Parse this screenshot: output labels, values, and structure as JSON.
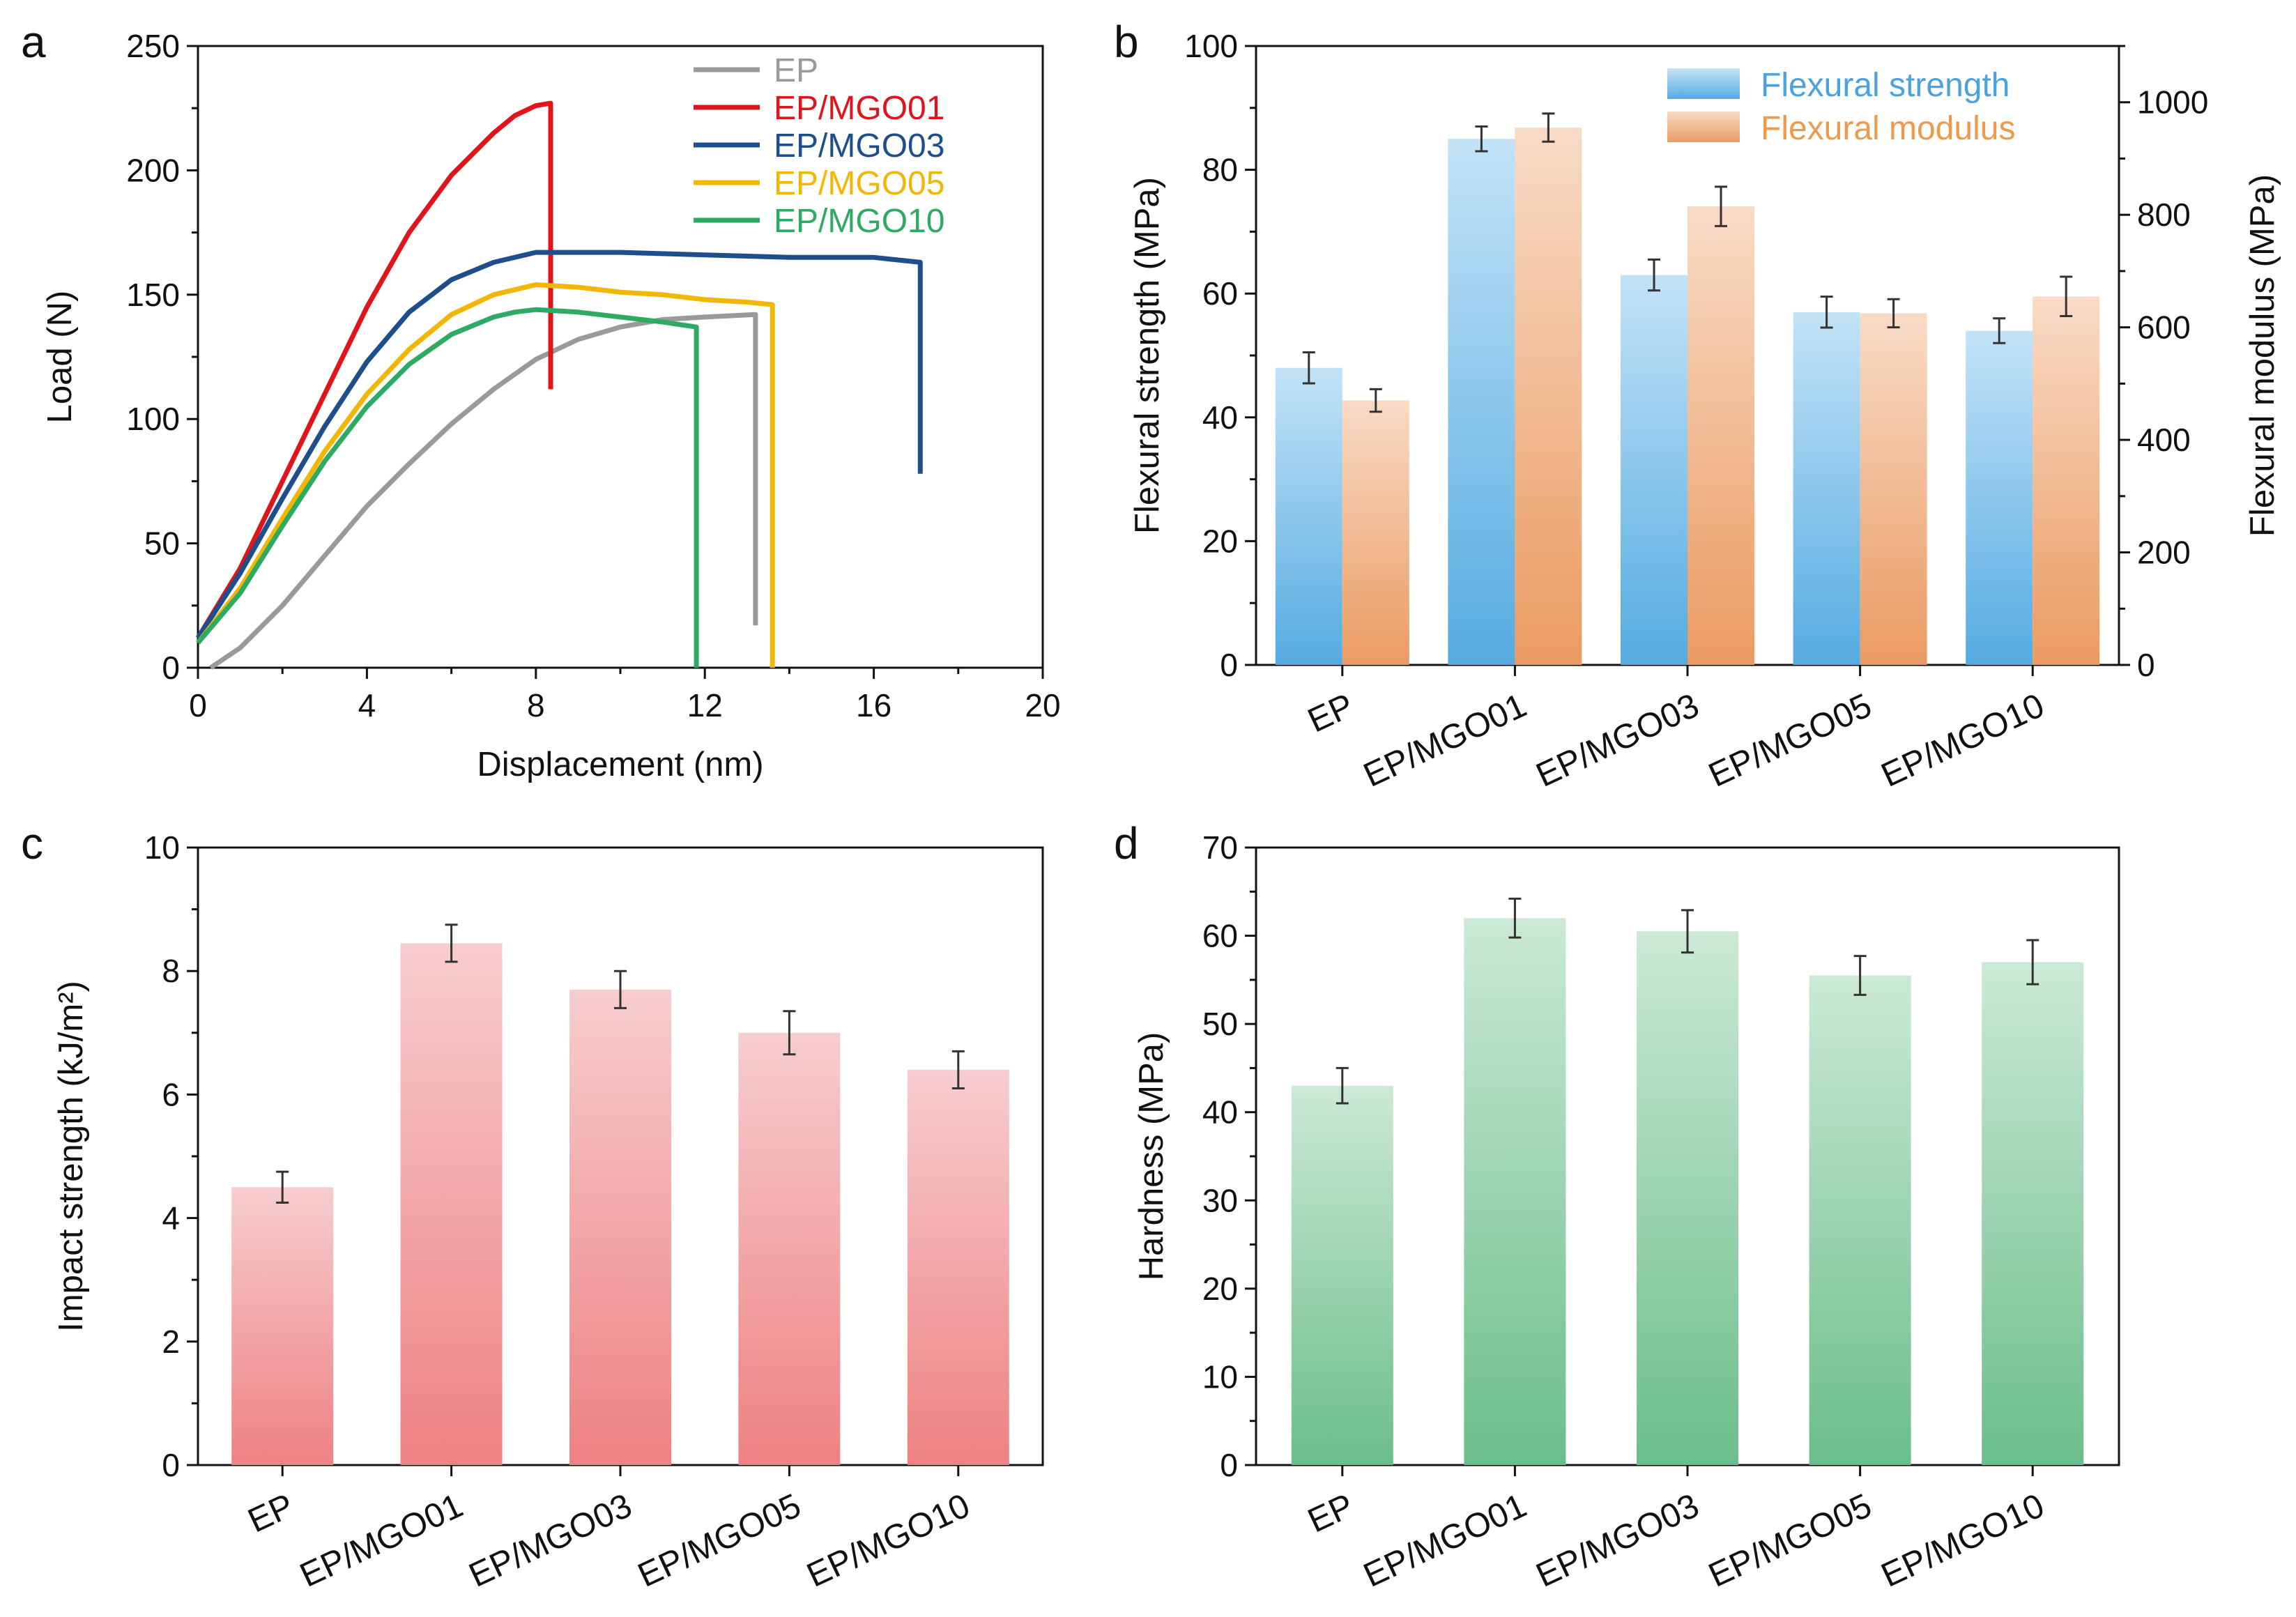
{
  "panels": {
    "a": "a",
    "b": "b",
    "c": "c",
    "d": "d"
  },
  "colors": {
    "EP": "#9a9a9a",
    "EP/MGO01": "#e0141b",
    "EP/MGO03": "#1f4e8c",
    "EP/MGO05": "#f2b705",
    "EP/MGO10": "#2eaa63",
    "strength": "#5aaee3",
    "modulus": "#eca06c",
    "legend_strength_text": "#4aa3e0",
    "legend_modulus_text": "#ee9a4d",
    "impact": "#ef8c8e",
    "hardness": "#6cbf8c"
  },
  "chart_data": [
    {
      "panel": "a",
      "type": "line",
      "xlabel": "Displacement (nm)",
      "ylabel": "Load (N)",
      "xlim": [
        0,
        20
      ],
      "ylim": [
        0,
        250
      ],
      "xticks": [
        "0",
        "4",
        "8",
        "12",
        "16",
        "20"
      ],
      "yticks": [
        "0",
        "50",
        "100",
        "150",
        "200",
        "250"
      ],
      "legend": [
        "EP",
        "EP/MGO01",
        "EP/MGO03",
        "EP/MGO05",
        "EP/MGO10"
      ],
      "series": [
        {
          "name": "EP",
          "points": [
            [
              0.3,
              0
            ],
            [
              1,
              8
            ],
            [
              2,
              25
            ],
            [
              3,
              45
            ],
            [
              4,
              65
            ],
            [
              5,
              82
            ],
            [
              6,
              98
            ],
            [
              7,
              112
            ],
            [
              8,
              124
            ],
            [
              9,
              132
            ],
            [
              10,
              137
            ],
            [
              11,
              140
            ],
            [
              12,
              141
            ],
            [
              13.2,
              142
            ],
            [
              13.2,
              17
            ]
          ]
        },
        {
          "name": "EP/MGO01",
          "points": [
            [
              0,
              12
            ],
            [
              1,
              40
            ],
            [
              2,
              75
            ],
            [
              3,
              110
            ],
            [
              4,
              145
            ],
            [
              5,
              175
            ],
            [
              6,
              198
            ],
            [
              7,
              215
            ],
            [
              7.5,
              222
            ],
            [
              8,
              226
            ],
            [
              8.35,
              227
            ],
            [
              8.35,
              112
            ]
          ]
        },
        {
          "name": "EP/MGO03",
          "points": [
            [
              0,
              12
            ],
            [
              1,
              38
            ],
            [
              2,
              68
            ],
            [
              3,
              97
            ],
            [
              4,
              123
            ],
            [
              5,
              143
            ],
            [
              6,
              156
            ],
            [
              7,
              163
            ],
            [
              8,
              167
            ],
            [
              10,
              167
            ],
            [
              12,
              166
            ],
            [
              14,
              165
            ],
            [
              16,
              165
            ],
            [
              17.1,
              163
            ],
            [
              17.1,
              78
            ]
          ]
        },
        {
          "name": "EP/MGO05",
          "points": [
            [
              0,
              10
            ],
            [
              1,
              32
            ],
            [
              2,
              60
            ],
            [
              3,
              87
            ],
            [
              4,
              110
            ],
            [
              5,
              128
            ],
            [
              6,
              142
            ],
            [
              7,
              150
            ],
            [
              8,
              154
            ],
            [
              9,
              153
            ],
            [
              10,
              151
            ],
            [
              11,
              150
            ],
            [
              12,
              148
            ],
            [
              13,
              147
            ],
            [
              13.6,
              146
            ],
            [
              13.6,
              0
            ]
          ]
        },
        {
          "name": "EP/MGO10",
          "points": [
            [
              0,
              10
            ],
            [
              1,
              30
            ],
            [
              2,
              57
            ],
            [
              3,
              83
            ],
            [
              4,
              105
            ],
            [
              5,
              122
            ],
            [
              6,
              134
            ],
            [
              7,
              141
            ],
            [
              7.5,
              143
            ],
            [
              8,
              144
            ],
            [
              9,
              143
            ],
            [
              10,
              141
            ],
            [
              11,
              139
            ],
            [
              11.8,
              137
            ],
            [
              11.8,
              0
            ]
          ]
        }
      ]
    },
    {
      "panel": "b",
      "type": "bar",
      "categories": [
        "EP",
        "EP/MGO01",
        "EP/MGO03",
        "EP/MGO05",
        "EP/MGO10"
      ],
      "ylabel": "Flexural strength (MPa)",
      "y2label": "Flexural modulus (MPa)",
      "ylim": [
        0,
        100
      ],
      "y2lim": [
        0,
        1100
      ],
      "yticks": [
        "0",
        "20",
        "40",
        "60",
        "80",
        "100"
      ],
      "y2ticks": [
        "0",
        "200",
        "400",
        "600",
        "800",
        "1000"
      ],
      "series": [
        {
          "name": "Flexural strength",
          "axis": "left",
          "values": [
            48,
            85,
            63,
            57,
            54
          ],
          "errors": [
            2.5,
            2.0,
            2.5,
            2.5,
            2.0
          ]
        },
        {
          "name": "Flexural modulus",
          "axis": "right",
          "values": [
            470,
            955,
            815,
            625,
            655
          ],
          "errors": [
            20,
            25,
            35,
            25,
            35
          ]
        }
      ]
    },
    {
      "panel": "c",
      "type": "bar",
      "categories": [
        "EP",
        "EP/MGO01",
        "EP/MGO03",
        "EP/MGO05",
        "EP/MGO10"
      ],
      "ylabel": "Impact strength (kJ/m²)",
      "ylim": [
        0,
        10
      ],
      "yticks": [
        "0",
        "2",
        "4",
        "6",
        "8",
        "10"
      ],
      "values": [
        4.5,
        8.45,
        7.7,
        7.0,
        6.4
      ],
      "errors": [
        0.25,
        0.3,
        0.3,
        0.35,
        0.3
      ]
    },
    {
      "panel": "d",
      "type": "bar",
      "categories": [
        "EP",
        "EP/MGO01",
        "EP/MGO03",
        "EP/MGO05",
        "EP/MGO10"
      ],
      "ylabel": "Hardness (MPa)",
      "ylim": [
        0,
        70
      ],
      "yticks": [
        "0",
        "10",
        "20",
        "30",
        "40",
        "50",
        "60",
        "70"
      ],
      "values": [
        43,
        62,
        60.5,
        55.5,
        57
      ],
      "errors": [
        2.0,
        2.2,
        2.4,
        2.2,
        2.5
      ]
    }
  ]
}
